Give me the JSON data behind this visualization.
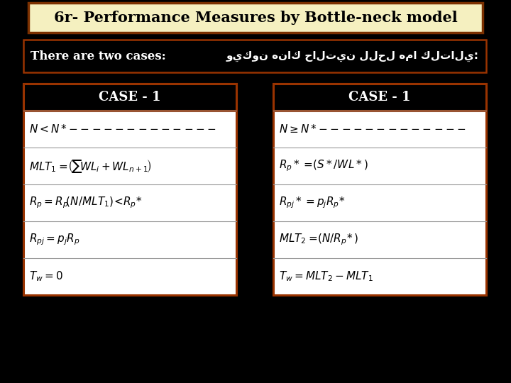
{
  "title": "6r- Performance Measures by Bottle-neck model",
  "title_bg": "#f5f0c0",
  "title_border": "#7B3000",
  "bg_color": "#000000",
  "header_text": "There are two cases:",
  "arabic_text": "ويكون هناك حالتين للحل هما كلتالي:",
  "case1_header": "CASE - 1",
  "case2_header": "CASE - 1",
  "table_border": "#993300",
  "text_color": "#ffffff",
  "title_fontsize": 15,
  "header_fontsize": 12,
  "arabic_fontsize": 11,
  "case_header_fontsize": 13,
  "formula_fontsize": 11
}
